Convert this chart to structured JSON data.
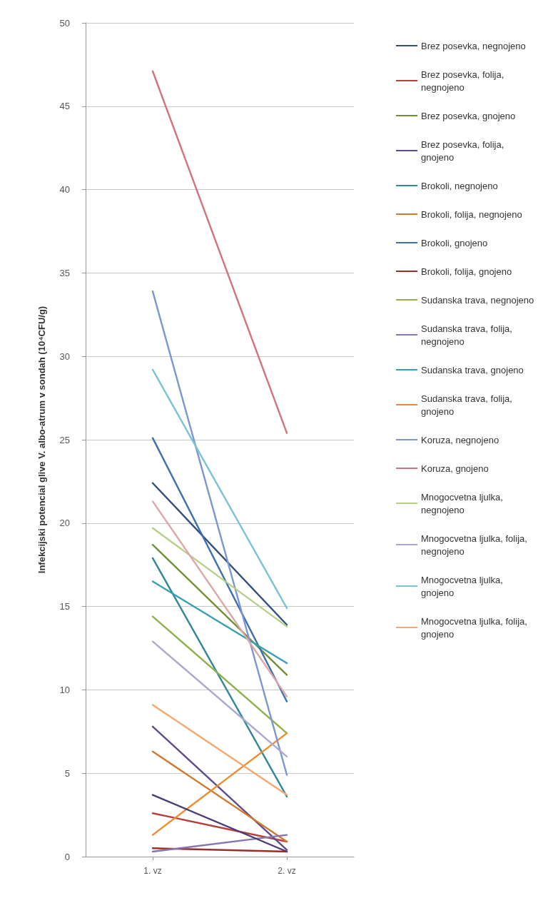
{
  "chart_data": {
    "type": "line",
    "ylabel": "Infekcijski potencial glive V. albo-atrum v sondah (10⁴CFU/g)",
    "categories": [
      "1. vz",
      "2. vz"
    ],
    "ylim": [
      0,
      50
    ],
    "yticks": [
      0,
      5,
      10,
      15,
      20,
      25,
      30,
      35,
      40,
      45,
      50
    ],
    "grid": "y",
    "legend": "right",
    "marker": "none",
    "line_style": "solid",
    "series": [
      {
        "name": "Brez posevka, negnojeno",
        "color": "#2f4f80",
        "values": [
          22.4,
          13.9
        ]
      },
      {
        "name": "Brez posevka, folija, negnojeno",
        "color": "#b8403c",
        "values": [
          2.6,
          0.9
        ]
      },
      {
        "name": "Brez posevka, gnojeno",
        "color": "#6f8f34",
        "values": [
          18.7,
          10.9
        ]
      },
      {
        "name": "Brez posevka, folija, gnojeno",
        "color": "#5f4a8b",
        "values": [
          7.8,
          0.4
        ]
      },
      {
        "name": "Brokoli, negnojeno",
        "color": "#2f8797",
        "values": [
          17.9,
          3.6
        ]
      },
      {
        "name": "Brokoli, folija, negnojeno",
        "color": "#d3782a",
        "values": [
          6.3,
          0.9
        ]
      },
      {
        "name": "Brokoli, gnojeno",
        "color": "#3b6fb0",
        "values": [
          25.1,
          9.3
        ]
      },
      {
        "name": "Brokoli, folija, gnojeno",
        "color": "#9c2d2a",
        "values": [
          0.5,
          0.3
        ]
      },
      {
        "name": "Sudanska trava, negnojeno",
        "color": "#8fb14c",
        "values": [
          14.4,
          7.4
        ]
      },
      {
        "name": "Sudanska trava, folija, negnojeno",
        "color": "#8a74b0",
        "values": [
          0.3,
          1.3
        ]
      },
      {
        "name": "Sudanska trava, gnojeno",
        "color": "#36a0b4",
        "values": [
          16.5,
          11.6
        ]
      },
      {
        "name": "Sudanska trava, folija, gnojeno",
        "color": "#f08a2c",
        "values": [
          1.3,
          7.4
        ]
      },
      {
        "name": "Koruza, negnojeno",
        "color": "#7b96d0",
        "values": [
          33.9,
          4.9
        ]
      },
      {
        "name": "Koruza, gnojeno",
        "color": "#d2737a",
        "values": [
          47.1,
          25.4
        ]
      },
      {
        "name": "Mnogocvetna ljulka, negnojeno",
        "color": "#b5cf87",
        "values": [
          19.7,
          13.8
        ]
      },
      {
        "name": "Mnogocvetna ljulka, folija, negnojeno",
        "color": "#a9a9d0",
        "values": [
          12.9,
          6.0
        ]
      },
      {
        "name": "Mnogocvetna ljulka, gnojeno",
        "color": "#79c3d6",
        "values": [
          29.2,
          14.9
        ]
      },
      {
        "name": "Mnogocvetna ljulka, folija, gnojeno",
        "color": "#f4a870",
        "values": [
          9.1,
          3.7
        ]
      },
      {
        "color": "#dba8a8",
        "values": [
          21.3,
          9.6
        ]
      },
      {
        "color": "#4b3a78",
        "values": [
          3.7,
          0.3
        ]
      }
    ]
  }
}
